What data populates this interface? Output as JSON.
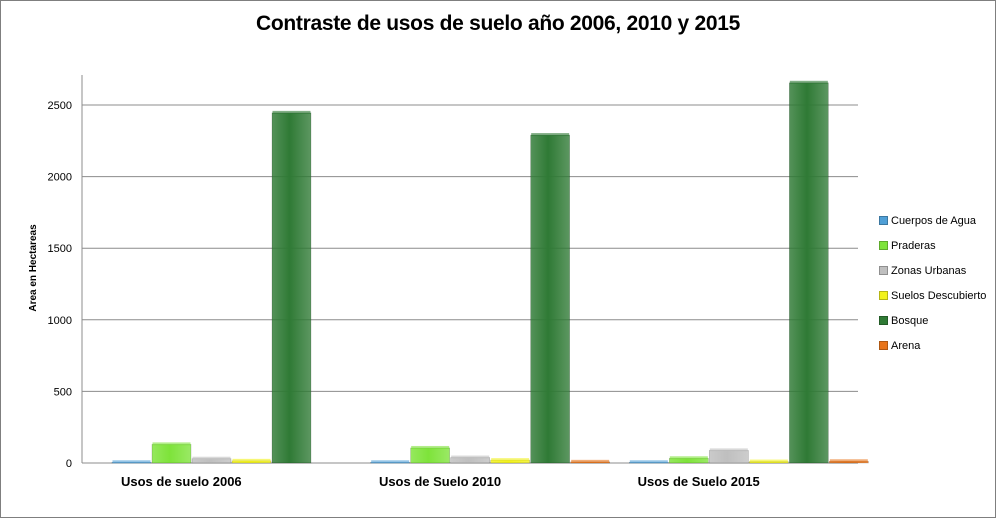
{
  "chart_data": {
    "type": "bar",
    "title": "Contraste de usos de suelo año 2006, 2010 y 2015",
    "ylabel": "Area en Hectareas",
    "xlabel": "",
    "ylim": [
      0,
      2660
    ],
    "yticks": [
      0,
      500,
      1000,
      1500,
      2000,
      2500
    ],
    "grid": true,
    "legend_position": "right",
    "categories": [
      "Usos de suelo 2006",
      "Usos de Suelo 2010",
      "Usos de Suelo 2015"
    ],
    "series": [
      {
        "name": "Cuerpos de Agua",
        "color": "#4f9fd6",
        "values": [
          5,
          5,
          5
        ]
      },
      {
        "name": "Praderas",
        "color": "#7ee33a",
        "values": [
          130,
          105,
          33
        ]
      },
      {
        "name": "Zonas Urbanas",
        "color": "#bfbfbf",
        "values": [
          30,
          38,
          88
        ]
      },
      {
        "name": "Suelos Descubierto",
        "color": "#f2f21c",
        "values": [
          15,
          20,
          10
        ]
      },
      {
        "name": "Bosque",
        "color": "#2f7a35",
        "values": [
          2445,
          2290,
          2655
        ]
      },
      {
        "name": "Arena",
        "color": "#e8741a",
        "values": [
          0,
          8,
          12
        ]
      }
    ]
  }
}
